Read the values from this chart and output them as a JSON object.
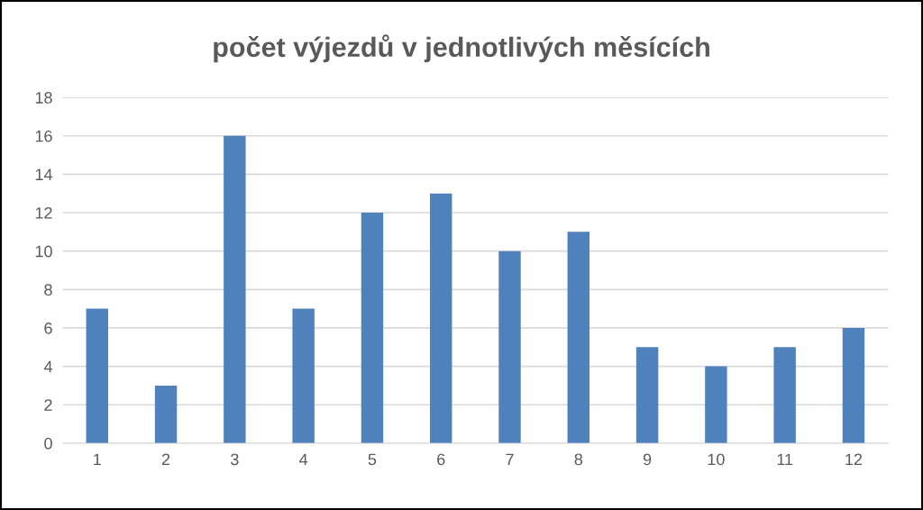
{
  "chart_data": {
    "type": "bar",
    "title": "počet výjezdů v jednotlivých měsících",
    "categories": [
      "1",
      "2",
      "3",
      "4",
      "5",
      "6",
      "7",
      "8",
      "9",
      "10",
      "11",
      "12"
    ],
    "values": [
      7,
      3,
      16,
      7,
      12,
      13,
      10,
      11,
      5,
      4,
      5,
      6
    ],
    "color": "#4f81bd",
    "ylim": [
      0,
      18
    ],
    "yticks": [
      0,
      2,
      4,
      6,
      8,
      10,
      12,
      14,
      16,
      18
    ],
    "grid": "y"
  }
}
